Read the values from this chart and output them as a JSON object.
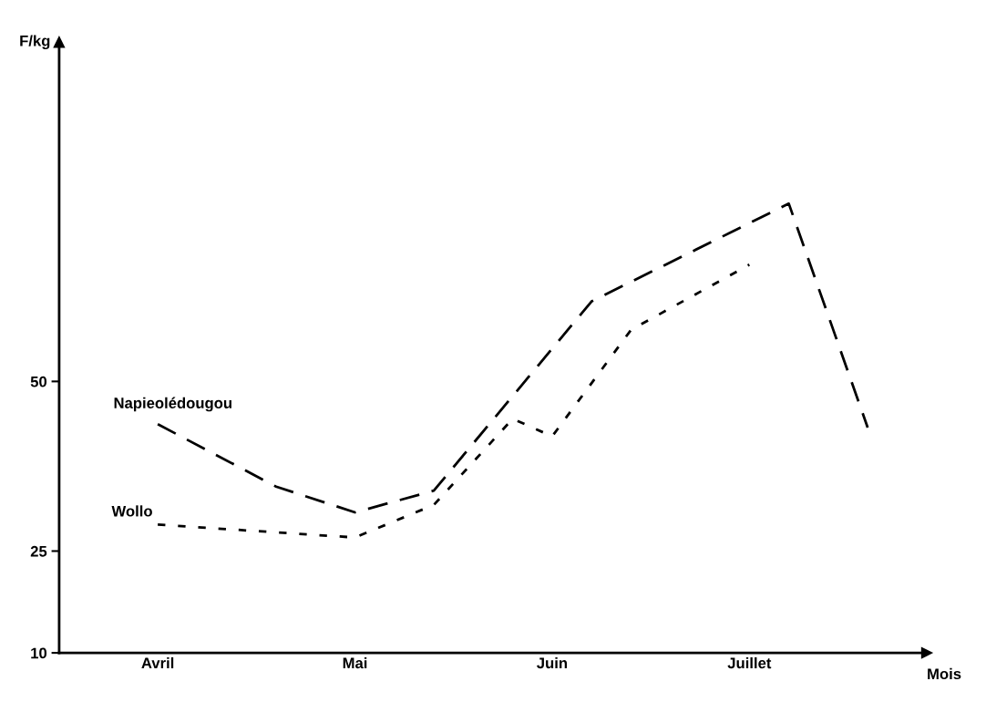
{
  "chart_data": {
    "type": "line",
    "xlabel": "Mois",
    "ylabel": "F/kg",
    "categories": [
      null,
      null,
      "Avril",
      null,
      null,
      null,
      null,
      "Mai",
      null,
      null,
      null,
      null,
      "Juin",
      null,
      null,
      null,
      null,
      "Juillet",
      null,
      null,
      null,
      null
    ],
    "ylim": [
      10,
      100
    ],
    "yticks": [
      10,
      25,
      50
    ],
    "grid": false,
    "legend": false,
    "marker": "none",
    "series": [
      {
        "name": "Napieolédougou",
        "color": "#000000",
        "line_style": "dashed",
        "values": [
          null,
          null,
          43.7,
          null,
          null,
          34.5,
          null,
          30.7,
          null,
          33.9,
          null,
          null,
          null,
          61.8,
          null,
          null,
          null,
          null,
          76.2,
          null,
          43.2,
          null
        ]
      },
      {
        "name": "Wollo",
        "color": "#000000",
        "line_style": "dotted",
        "values": [
          null,
          null,
          28.9,
          null,
          null,
          null,
          null,
          27.0,
          null,
          31.8,
          null,
          44.5,
          41.9,
          null,
          57.6,
          null,
          null,
          67.2,
          null,
          null,
          null,
          null
        ]
      }
    ]
  }
}
